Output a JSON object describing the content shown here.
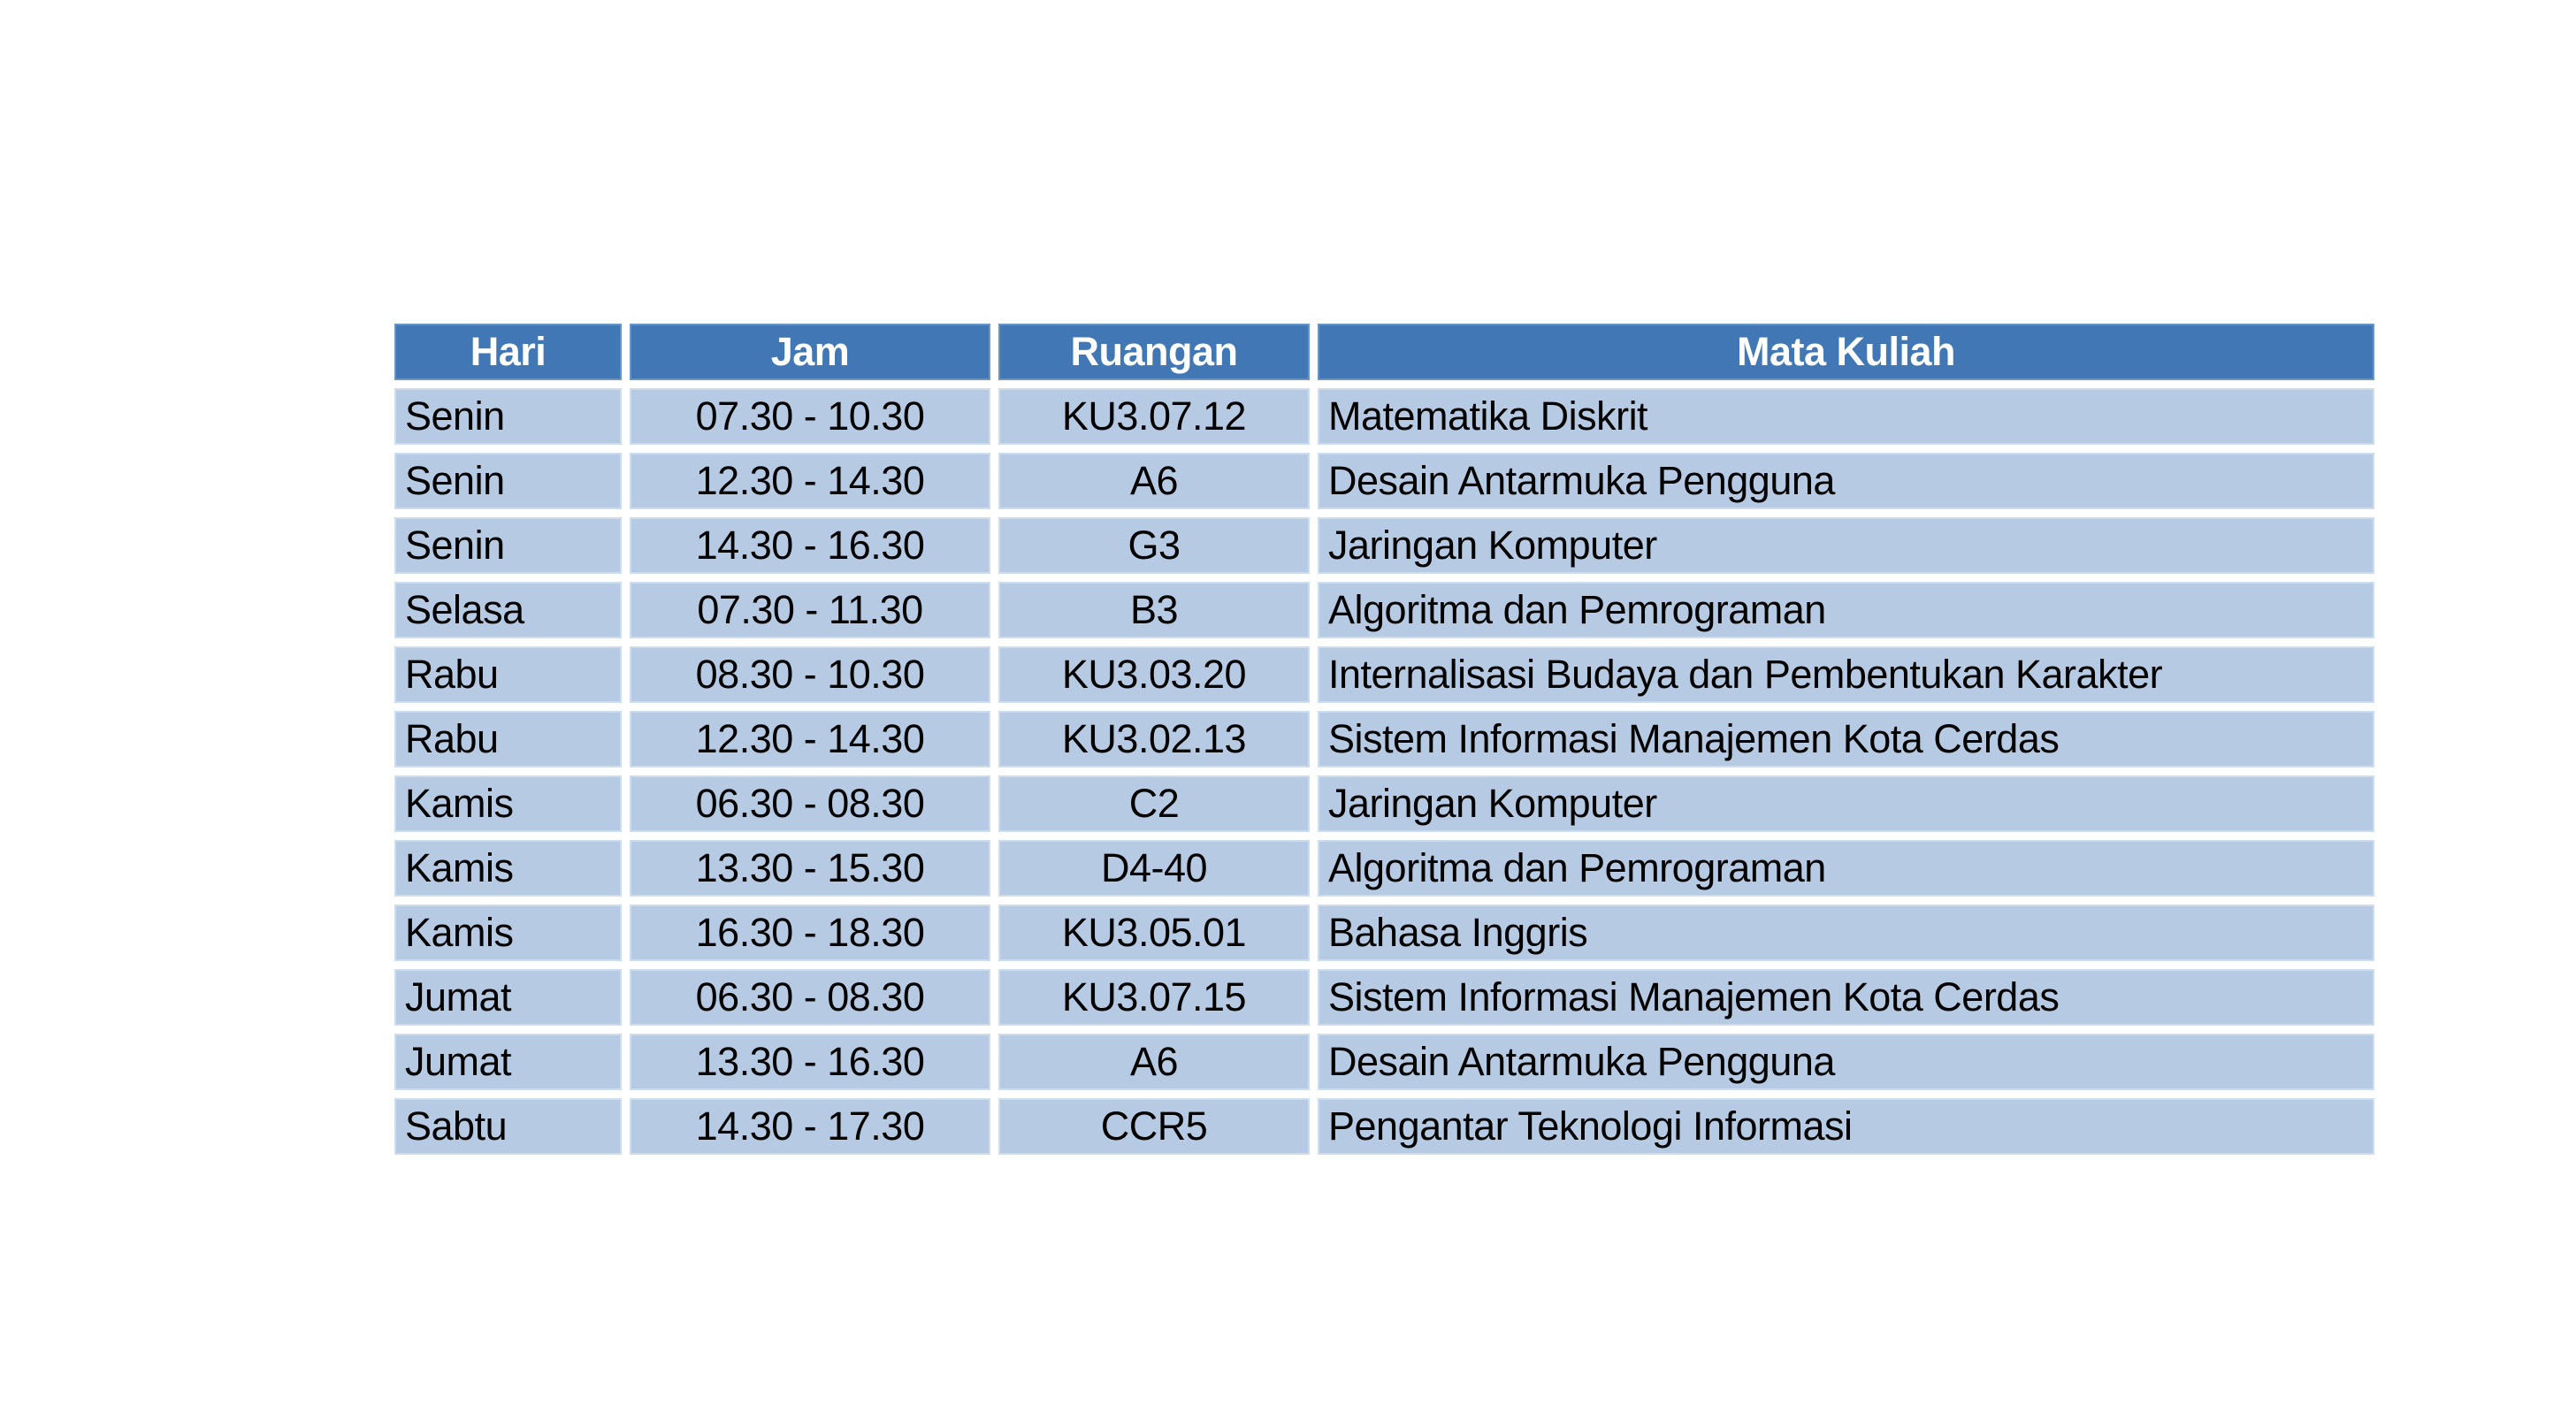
{
  "table": {
    "columns": [
      "Hari",
      "Jam",
      "Ruangan",
      "Mata Kuliah"
    ],
    "rows": [
      [
        "Senin",
        "07.30 - 10.30",
        "KU3.07.12",
        "Matematika Diskrit"
      ],
      [
        "Senin",
        "12.30 - 14.30",
        "A6",
        "Desain Antarmuka Pengguna"
      ],
      [
        "Senin",
        "14.30 - 16.30",
        "G3",
        "Jaringan Komputer"
      ],
      [
        "Selasa",
        "07.30 - 11.30",
        "B3",
        "Algoritma dan Pemrograman"
      ],
      [
        "Rabu",
        "08.30 - 10.30",
        "KU3.03.20",
        "Internalisasi Budaya dan Pembentukan Karakter"
      ],
      [
        "Rabu",
        "12.30 - 14.30",
        "KU3.02.13",
        "Sistem Informasi Manajemen Kota Cerdas"
      ],
      [
        "Kamis",
        "06.30 - 08.30",
        "C2",
        "Jaringan Komputer"
      ],
      [
        "Kamis",
        "13.30 - 15.30",
        "D4-40",
        "Algoritma dan Pemrograman"
      ],
      [
        "Kamis",
        "16.30 - 18.30",
        "KU3.05.01",
        "Bahasa Inggris"
      ],
      [
        "Jumat",
        "06.30 - 08.30",
        "KU3.07.15",
        "Sistem Informasi Manajemen Kota Cerdas"
      ],
      [
        "Jumat",
        "13.30 - 16.30",
        "A6",
        "Desain Antarmuka Pengguna"
      ],
      [
        "Sabtu",
        "14.30 - 17.30",
        "CCR5",
        "Pengantar Teknologi Informasi"
      ]
    ],
    "colors": {
      "header_bg": "#4177B5",
      "header_text": "#FFFFFF",
      "row_bg": "#B6CBE3",
      "row_border": "#CEDDEE",
      "text": "#000000",
      "gap": "#FFFFFF"
    }
  }
}
